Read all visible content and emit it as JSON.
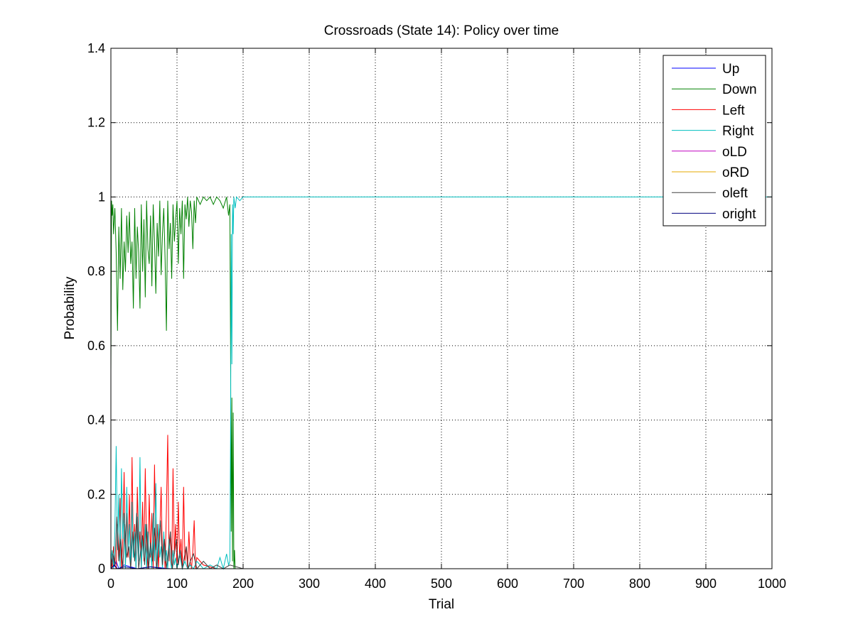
{
  "chart_data": {
    "type": "line",
    "title": "Crossroads (State 14): Policy over time",
    "xlabel": "Trial",
    "ylabel": "Probability",
    "xlim": [
      0,
      1000
    ],
    "ylim": [
      0,
      1.4
    ],
    "xticks": [
      0,
      100,
      200,
      300,
      400,
      500,
      600,
      700,
      800,
      900,
      1000
    ],
    "yticks": [
      0,
      0.2,
      0.4,
      0.6,
      0.8,
      1,
      1.2,
      1.4
    ],
    "xtick_labels": [
      "0",
      "100",
      "200",
      "300",
      "400",
      "500",
      "600",
      "700",
      "800",
      "900",
      "1000"
    ],
    "ytick_labels": [
      "0",
      "0.2",
      "0.4",
      "0.6",
      "0.8",
      "1",
      "1.2",
      "1.4"
    ],
    "grid": true,
    "legend_position": "top-right",
    "series": [
      {
        "name": "Up",
        "color": "#0000ff",
        "x": [
          0,
          3,
          5,
          8,
          12,
          20,
          40,
          60,
          90,
          120,
          150,
          180,
          200,
          1000
        ],
        "values": [
          0.01,
          0.03,
          0.005,
          0.02,
          0.0,
          0.01,
          0.0,
          0.005,
          0.0,
          0.0,
          0.0,
          0.0,
          0.0,
          0.0
        ]
      },
      {
        "name": "Down",
        "color": "#008000",
        "x": [
          0,
          1,
          2,
          3,
          4,
          6,
          8,
          10,
          12,
          14,
          16,
          18,
          20,
          22,
          24,
          26,
          28,
          30,
          32,
          34,
          36,
          38,
          40,
          42,
          44,
          46,
          48,
          50,
          52,
          54,
          56,
          58,
          60,
          62,
          64,
          66,
          68,
          70,
          72,
          74,
          76,
          78,
          80,
          82,
          84,
          86,
          88,
          90,
          92,
          94,
          96,
          98,
          100,
          102,
          104,
          106,
          108,
          110,
          112,
          114,
          116,
          118,
          120,
          122,
          124,
          126,
          128,
          130,
          135,
          140,
          145,
          150,
          155,
          160,
          165,
          170,
          175,
          178,
          180,
          181,
          182,
          183,
          184,
          185,
          186,
          187,
          188,
          190,
          195,
          200,
          1000
        ],
        "values": [
          0.53,
          0.99,
          0.95,
          0.98,
          0.9,
          0.97,
          0.85,
          0.64,
          0.92,
          0.78,
          0.97,
          0.75,
          0.88,
          0.8,
          0.95,
          0.85,
          0.96,
          0.82,
          0.88,
          0.7,
          0.97,
          0.78,
          0.92,
          0.85,
          0.7,
          0.98,
          0.8,
          0.94,
          0.73,
          0.99,
          0.86,
          0.82,
          0.95,
          0.76,
          0.98,
          0.88,
          0.74,
          0.93,
          0.84,
          0.99,
          0.79,
          0.9,
          0.97,
          0.83,
          0.64,
          0.99,
          0.86,
          0.93,
          0.78,
          0.98,
          0.88,
          0.94,
          0.99,
          0.82,
          0.97,
          0.9,
          0.99,
          0.78,
          0.98,
          0.94,
          1.0,
          0.92,
          0.99,
          0.96,
          0.86,
          0.99,
          0.93,
          1.0,
          0.98,
          1.0,
          0.99,
          1.0,
          0.98,
          1.0,
          0.99,
          0.97,
          1.0,
          0.95,
          0.98,
          0.6,
          0.1,
          0.46,
          0.02,
          0.42,
          0.0,
          0.05,
          0.0,
          0.0,
          0.0,
          0.0,
          0.0
        ]
      },
      {
        "name": "Left",
        "color": "#ff0000",
        "x": [
          0,
          2,
          4,
          6,
          8,
          10,
          12,
          14,
          16,
          18,
          20,
          22,
          24,
          26,
          28,
          30,
          32,
          34,
          36,
          38,
          40,
          42,
          44,
          46,
          48,
          50,
          52,
          54,
          56,
          58,
          60,
          62,
          64,
          66,
          68,
          70,
          72,
          74,
          76,
          78,
          80,
          82,
          84,
          86,
          88,
          90,
          92,
          94,
          96,
          98,
          100,
          102,
          104,
          106,
          108,
          110,
          112,
          114,
          116,
          118,
          120,
          122,
          124,
          126,
          128,
          130,
          140,
          160,
          180,
          200,
          1000
        ],
        "values": [
          0.04,
          0.0,
          0.06,
          0.01,
          0.0,
          0.12,
          0.02,
          0.19,
          0.0,
          0.08,
          0.26,
          0.01,
          0.15,
          0.03,
          0.2,
          0.0,
          0.3,
          0.05,
          0.12,
          0.0,
          0.22,
          0.04,
          0.1,
          0.0,
          0.18,
          0.02,
          0.27,
          0.06,
          0.0,
          0.2,
          0.03,
          0.15,
          0.0,
          0.28,
          0.05,
          0.12,
          0.0,
          0.1,
          0.22,
          0.03,
          0.08,
          0.0,
          0.16,
          0.36,
          0.02,
          0.1,
          0.0,
          0.27,
          0.04,
          0.12,
          0.0,
          0.18,
          0.03,
          0.08,
          0.0,
          0.22,
          0.02,
          0.06,
          0.0,
          0.1,
          0.02,
          0.0,
          0.05,
          0.13,
          0.0,
          0.03,
          0.01,
          0.0,
          0.0,
          0.0,
          0.0
        ]
      },
      {
        "name": "Right",
        "color": "#00bfbf",
        "x": [
          0,
          2,
          4,
          6,
          8,
          10,
          12,
          14,
          16,
          18,
          20,
          22,
          24,
          26,
          28,
          30,
          32,
          34,
          36,
          38,
          40,
          42,
          44,
          46,
          48,
          50,
          52,
          54,
          56,
          58,
          60,
          62,
          64,
          66,
          68,
          70,
          72,
          74,
          76,
          78,
          80,
          82,
          84,
          86,
          88,
          90,
          92,
          94,
          96,
          98,
          100,
          104,
          108,
          112,
          116,
          120,
          125,
          130,
          140,
          150,
          160,
          165,
          170,
          175,
          178,
          180,
          181,
          182,
          183,
          184,
          185,
          186,
          188,
          190,
          195,
          200,
          1000
        ],
        "values": [
          0.02,
          0.05,
          0.0,
          0.1,
          0.33,
          0.05,
          0.2,
          0.0,
          0.27,
          0.08,
          0.15,
          0.0,
          0.22,
          0.05,
          0.12,
          0.0,
          0.18,
          0.03,
          0.1,
          0.0,
          0.14,
          0.02,
          0.3,
          0.0,
          0.08,
          0.03,
          0.12,
          0.0,
          0.1,
          0.02,
          0.06,
          0.0,
          0.15,
          0.02,
          0.23,
          0.0,
          0.12,
          0.03,
          0.06,
          0.0,
          0.1,
          0.02,
          0.05,
          0.0,
          0.08,
          0.02,
          0.0,
          0.05,
          0.01,
          0.03,
          0.0,
          0.04,
          0.0,
          0.02,
          0.0,
          0.01,
          0.0,
          0.02,
          0.0,
          0.01,
          0.0,
          0.03,
          0.0,
          0.04,
          0.01,
          0.02,
          0.35,
          0.9,
          0.55,
          0.98,
          0.9,
          1.0,
          0.97,
          1.0,
          0.99,
          1.0,
          1.0
        ]
      },
      {
        "name": "oLD",
        "color": "#bf00bf",
        "x": [
          0,
          50,
          100,
          150,
          200,
          1000
        ],
        "values": [
          0.0,
          0.0,
          0.0,
          0.0,
          0.0,
          0.0
        ]
      },
      {
        "name": "oRD",
        "color": "#e5a800",
        "x": [
          0,
          50,
          100,
          150,
          200,
          1000
        ],
        "values": [
          0.0,
          0.0,
          0.0,
          0.0,
          0.0,
          0.0
        ]
      },
      {
        "name": "oleft",
        "color": "#404040",
        "x": [
          0,
          3,
          6,
          9,
          12,
          15,
          18,
          21,
          24,
          27,
          30,
          33,
          36,
          39,
          42,
          45,
          48,
          51,
          54,
          57,
          60,
          63,
          66,
          69,
          72,
          75,
          78,
          81,
          84,
          87,
          90,
          93,
          96,
          99,
          102,
          105,
          108,
          111,
          114,
          117,
          120,
          125,
          130,
          140,
          150,
          160,
          170,
          180,
          200,
          1000
        ],
        "values": [
          0.0,
          0.04,
          0.01,
          0.14,
          0.02,
          0.08,
          0.0,
          0.12,
          0.03,
          0.06,
          0.0,
          0.1,
          0.02,
          0.15,
          0.0,
          0.05,
          0.09,
          0.01,
          0.12,
          0.0,
          0.07,
          0.02,
          0.11,
          0.0,
          0.06,
          0.13,
          0.01,
          0.08,
          0.0,
          0.05,
          0.1,
          0.0,
          0.04,
          0.08,
          0.01,
          0.05,
          0.0,
          0.03,
          0.06,
          0.0,
          0.02,
          0.04,
          0.0,
          0.02,
          0.0,
          0.01,
          0.0,
          0.01,
          0.0,
          0.0
        ]
      },
      {
        "name": "oright",
        "color": "#00007f",
        "x": [
          0,
          5,
          10,
          20,
          40,
          60,
          80,
          100,
          140,
          200,
          1000
        ],
        "values": [
          0.0,
          0.01,
          0.0,
          0.005,
          0.0,
          0.005,
          0.0,
          0.0,
          0.0,
          0.0,
          0.0
        ]
      }
    ]
  }
}
